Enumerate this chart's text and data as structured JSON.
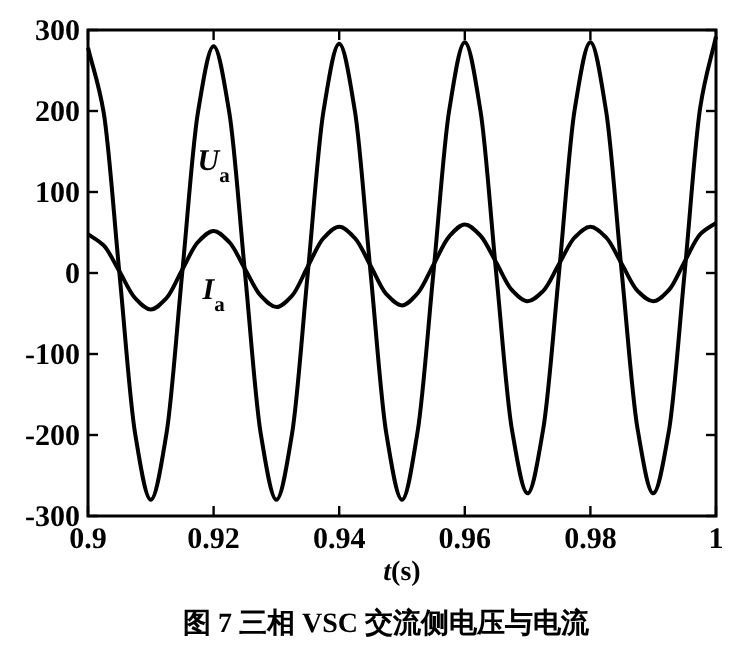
{
  "chart_data": {
    "type": "line",
    "title": "图 7 三相 VSC 交流侧电压与电流",
    "xlabel": "*t*(s)",
    "x": [
      0.9,
      0.9025,
      0.905,
      0.9075,
      0.91,
      0.9125,
      0.915,
      0.9175,
      0.92,
      0.9225,
      0.925,
      0.9275,
      0.93,
      0.9325,
      0.935,
      0.9375,
      0.94,
      0.9425,
      0.945,
      0.9475,
      0.95,
      0.9525,
      0.955,
      0.9575,
      0.96,
      0.9625,
      0.965,
      0.9675,
      0.97,
      0.9725,
      0.975,
      0.9775,
      0.98,
      0.9825,
      0.985,
      0.9875,
      0.99,
      0.9925,
      0.995,
      0.9975,
      1.0
    ],
    "series": [
      {
        "name": "*U*$_{a}$",
        "color": "#000000",
        "values": [
          278,
          198,
          0,
          -198,
          -280,
          -198,
          0,
          198,
          280,
          198,
          0,
          -198,
          -280,
          -198,
          0,
          200,
          283,
          200,
          0,
          -198,
          -280,
          -195,
          0,
          200,
          285,
          200,
          0,
          -193,
          -272,
          -192,
          0,
          202,
          285,
          200,
          0,
          -192,
          -272,
          -195,
          0,
          205,
          292
        ]
      },
      {
        "name": "*I*$_{a}$",
        "color": "#000000",
        "values": [
          48,
          34,
          2,
          -31,
          -45,
          -31,
          4,
          38,
          52,
          38,
          5,
          -28,
          -42,
          -28,
          8,
          43,
          57,
          43,
          9,
          -26,
          -40,
          -25,
          10,
          45,
          60,
          46,
          13,
          -21,
          -35,
          -22,
          11,
          44,
          57,
          44,
          11,
          -22,
          -35,
          -21,
          14,
          48,
          62
        ]
      }
    ],
    "xlim": [
      0.9,
      1.0
    ],
    "xticks": [
      0.9,
      0.92,
      0.94,
      0.96,
      0.98,
      1
    ],
    "ylim": [
      -300,
      300
    ],
    "yticks": [
      -300,
      -200,
      -100,
      0,
      100,
      200,
      300
    ],
    "grid": false,
    "legend": false,
    "marker": "none",
    "line_style": "solid"
  }
}
